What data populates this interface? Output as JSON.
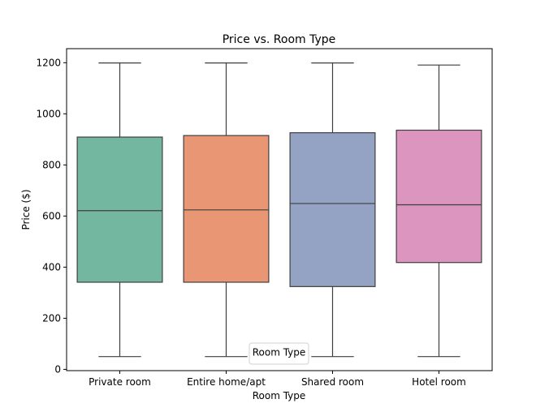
{
  "chart_data": {
    "type": "box",
    "title": "Price vs. Room Type",
    "xlabel": "Room Type",
    "ylabel": "Price ($)",
    "ylim": [
      -5,
      1255
    ],
    "yticks": [
      0,
      200,
      400,
      600,
      800,
      1000,
      1200
    ],
    "grid": false,
    "legend": {
      "title": "Room Type",
      "position": "bottom-center"
    },
    "categories": [
      "Private room",
      "Entire home/apt",
      "Shared room",
      "Hotel room"
    ],
    "boxes": [
      {
        "category": "Private room",
        "whisker_low": 50,
        "q1": 341,
        "median": 621,
        "q3": 909,
        "whisker_high": 1199,
        "color": "#73b7a0"
      },
      {
        "category": "Entire home/apt",
        "whisker_low": 50,
        "q1": 341,
        "median": 624,
        "q3": 915,
        "whisker_high": 1199,
        "color": "#e99675"
      },
      {
        "category": "Shared room",
        "whisker_low": 50,
        "q1": 324,
        "median": 649,
        "q3": 926,
        "whisker_high": 1199,
        "color": "#94a3c4"
      },
      {
        "category": "Hotel room",
        "whisker_low": 50,
        "q1": 418,
        "median": 644,
        "q3": 936,
        "whisker_high": 1191,
        "color": "#dc95bf"
      }
    ]
  }
}
